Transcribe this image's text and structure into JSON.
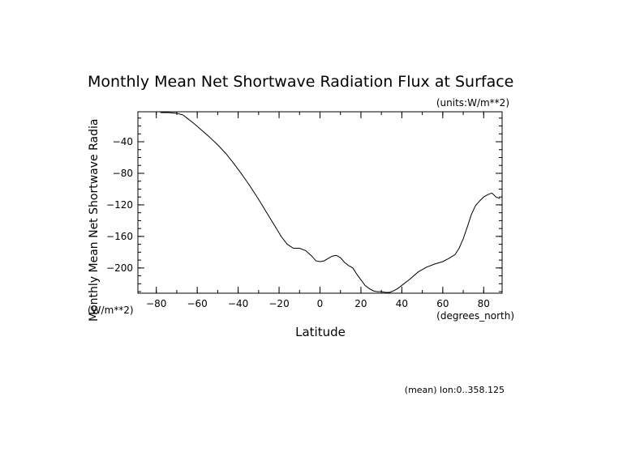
{
  "chart_data": {
    "type": "line",
    "title": "Monthly Mean Net Shortwave Radiation Flux at Surface",
    "units_label": "(units:W/m**2)",
    "ylabel": "Monthly Mean Net Shortwave Radia",
    "y_units_label": "(W/m**2)",
    "xlabel": "Latitude",
    "x_units_label": "(degrees_north)",
    "footer": "(mean) lon:0..358.125",
    "xlim": [
      -89,
      89
    ],
    "ylim": [
      -232,
      -2
    ],
    "x_ticks": [
      -80,
      -60,
      -40,
      -20,
      0,
      20,
      40,
      60,
      80
    ],
    "y_ticks": [
      -40,
      -80,
      -120,
      -160,
      -200
    ],
    "grid": false,
    "series": [
      {
        "x": [
          -78,
          -74,
          -70,
          -67,
          -65,
          -62,
          -58,
          -54,
          -50,
          -46,
          -42,
          -38,
          -34,
          -30,
          -26,
          -22,
          -19,
          -16,
          -13,
          -10,
          -7,
          -4,
          -2,
          0,
          2,
          4,
          6,
          8,
          10,
          12,
          14,
          16,
          18,
          20,
          22,
          24,
          26,
          28,
          30,
          32,
          34,
          36,
          38,
          40,
          44,
          48,
          52,
          56,
          60,
          63,
          66,
          68,
          70,
          72,
          74,
          76,
          78,
          80,
          82,
          84,
          86,
          88
        ],
        "y": [
          -3,
          -3,
          -4,
          -6,
          -10,
          -16,
          -25,
          -34,
          -44,
          -55,
          -68,
          -82,
          -97,
          -113,
          -130,
          -147,
          -160,
          -170,
          -175,
          -175,
          -178,
          -185,
          -191,
          -192,
          -191,
          -188,
          -185,
          -184,
          -187,
          -193,
          -197,
          -200,
          -208,
          -215,
          -222,
          -226,
          -229,
          -230,
          -230,
          -231,
          -231,
          -229,
          -226,
          -222,
          -214,
          -205,
          -199,
          -195,
          -192,
          -188,
          -183,
          -175,
          -163,
          -148,
          -132,
          -121,
          -115,
          -110,
          -107,
          -105,
          -110,
          -112
        ]
      }
    ]
  }
}
